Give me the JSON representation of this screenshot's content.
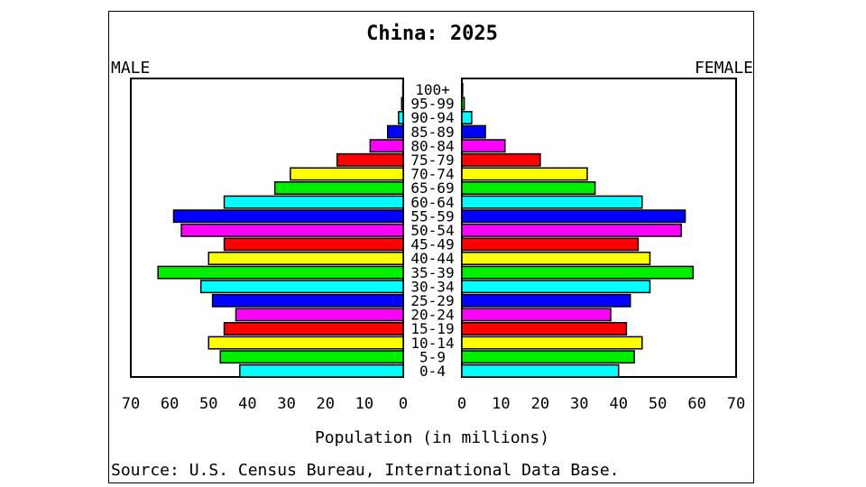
{
  "chart_data": {
    "type": "bar",
    "title": "China: 2025",
    "left_label": "MALE",
    "right_label": "FEMALE",
    "xlabel": "Population (in millions)",
    "source": "Source: U.S. Census Bureau, International Data Base.",
    "xlim": [
      0,
      70
    ],
    "xticks": [
      "70",
      "60",
      "50",
      "40",
      "30",
      "20",
      "10",
      "0",
      "0",
      "10",
      "20",
      "30",
      "40",
      "50",
      "60",
      "70"
    ],
    "categories": [
      "0-4",
      "5-9",
      "10-14",
      "15-19",
      "20-24",
      "25-29",
      "30-34",
      "35-39",
      "40-44",
      "45-49",
      "50-54",
      "55-59",
      "60-64",
      "65-69",
      "70-74",
      "75-79",
      "80-84",
      "85-89",
      "90-94",
      "95-99",
      "100+"
    ],
    "series": [
      {
        "name": "MALE",
        "values": [
          42,
          47,
          50,
          46,
          43,
          49,
          52,
          63,
          50,
          46,
          57,
          59,
          46,
          33,
          29,
          17,
          8.5,
          4,
          1.2,
          0.4,
          0.1
        ]
      },
      {
        "name": "FEMALE",
        "values": [
          40,
          44,
          46,
          42,
          38,
          43,
          48,
          59,
          48,
          45,
          56,
          57,
          46,
          34,
          32,
          20,
          11,
          6,
          2.5,
          0.6,
          0.2
        ]
      }
    ],
    "colors": [
      "#00ffff",
      "#00ee00",
      "#ffff00",
      "#ff0000",
      "#ff00ff",
      "#0000ff"
    ],
    "grid": false,
    "legend": "none"
  }
}
